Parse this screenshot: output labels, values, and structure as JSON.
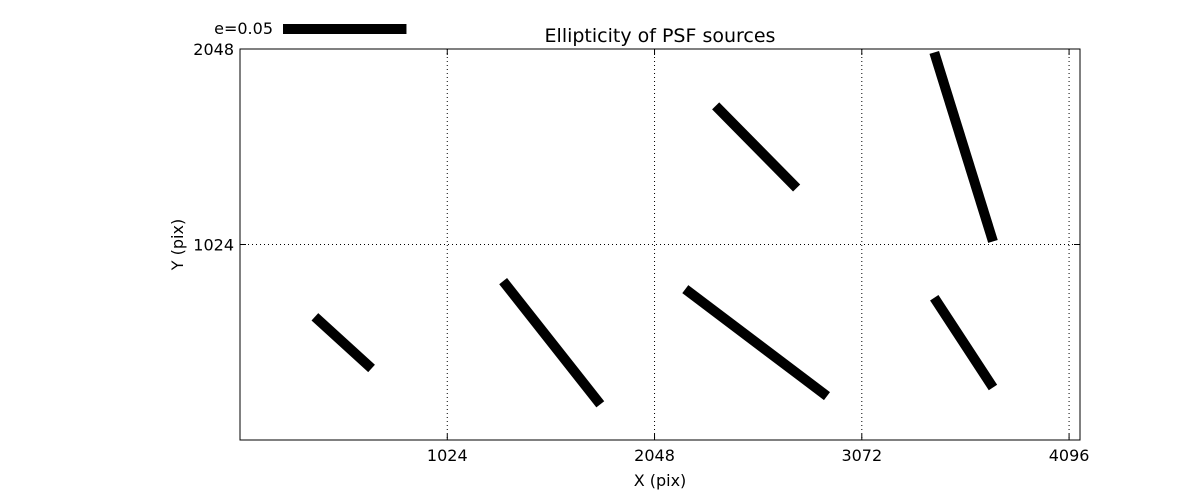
{
  "chart_data": {
    "type": "whisker",
    "title": "Ellipticity of PSF sources",
    "xlabel": "X (pix)",
    "ylabel": "Y (pix)",
    "xlim": [
      0,
      4150
    ],
    "ylim": [
      0,
      2048
    ],
    "xticks": [
      1024,
      2048,
      3072,
      4096
    ],
    "xtick_labels": [
      "1024",
      "2048",
      "3072",
      "4096"
    ],
    "yticks": [
      1024,
      2048
    ],
    "ytick_labels": [
      "1024",
      "2048"
    ],
    "grid": true,
    "legend": {
      "label": "e=0.05",
      "reference_e": 0.05,
      "reference_length_pix": 610,
      "placement": "top-left, above plot"
    },
    "whiskers": [
      {
        "x1": 370,
        "y1": 645,
        "x2": 650,
        "y2": 375
      },
      {
        "x1": 1300,
        "y1": 832,
        "x2": 1780,
        "y2": 187
      },
      {
        "x1": 2200,
        "y1": 790,
        "x2": 2900,
        "y2": 230
      },
      {
        "x1": 2350,
        "y1": 1750,
        "x2": 2750,
        "y2": 1320
      },
      {
        "x1": 3430,
        "y1": 2030,
        "x2": 3720,
        "y2": 1040
      },
      {
        "x1": 3430,
        "y1": 745,
        "x2": 3720,
        "y2": 275
      }
    ],
    "color": "#000000"
  }
}
